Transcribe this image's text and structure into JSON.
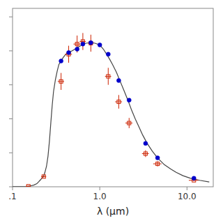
{
  "chart_data": {
    "type": "scatter",
    "xlabel": "λ (μm)",
    "log": "x",
    "grid": false,
    "tick_labels": "x",
    "xlim": [
      0.1,
      20.0
    ],
    "ylim": [
      0.0,
      1.05
    ],
    "xticks": [
      {
        "value": 0.1,
        "label": ".1"
      },
      {
        "value": 1.0,
        "label": "1.0"
      },
      {
        "value": 10.0,
        "label": "10.0"
      }
    ],
    "yticks": [
      0,
      0.2,
      0.4,
      0.6,
      0.8,
      1.0
    ],
    "series": [
      {
        "type": "line",
        "color": "#444444",
        "line_style": "solid",
        "x": [
          0.1,
          0.115,
          0.13,
          0.145,
          0.152,
          0.16,
          0.175,
          0.19,
          0.2,
          0.21,
          0.22,
          0.228,
          0.235,
          0.245,
          0.255,
          0.265,
          0.275,
          0.285,
          0.295,
          0.31,
          0.325,
          0.34,
          0.36,
          0.38,
          0.4,
          0.42,
          0.44,
          0.48,
          0.52,
          0.56,
          0.6,
          0.64,
          0.7,
          0.76,
          0.82,
          0.88,
          0.94,
          1.0,
          1.1,
          1.2,
          1.3,
          1.4,
          1.55,
          1.7,
          1.9,
          2.1,
          2.3,
          2.55,
          2.8,
          3.1,
          3.5,
          4.0,
          4.6,
          5.5,
          6.5,
          7.5,
          9.0,
          11.0,
          14.0,
          18.0
        ],
        "values": [
          0.0002,
          0.0003,
          0.0004,
          0.0008,
          0.003,
          0.005,
          0.01,
          0.018,
          0.03,
          0.042,
          0.055,
          0.065,
          0.085,
          0.12,
          0.18,
          0.27,
          0.38,
          0.48,
          0.56,
          0.63,
          0.68,
          0.72,
          0.74,
          0.76,
          0.775,
          0.785,
          0.79,
          0.8,
          0.81,
          0.82,
          0.83,
          0.84,
          0.845,
          0.848,
          0.848,
          0.845,
          0.84,
          0.835,
          0.81,
          0.78,
          0.75,
          0.72,
          0.675,
          0.625,
          0.565,
          0.51,
          0.455,
          0.4,
          0.355,
          0.305,
          0.255,
          0.21,
          0.17,
          0.13,
          0.105,
          0.085,
          0.065,
          0.05,
          0.038,
          0.028
        ]
      },
      {
        "type": "scatter",
        "color": "#cc2200",
        "marker": "square",
        "x": [
          0.152,
          0.228,
          0.36,
          0.44,
          0.55,
          0.64,
          0.79,
          1.25,
          1.65,
          2.17,
          3.35,
          4.6,
          12.0
        ],
        "values": [
          0.003,
          0.06,
          0.62,
          0.78,
          0.84,
          0.855,
          0.845,
          0.65,
          0.5,
          0.375,
          0.195,
          0.135,
          0.038
        ],
        "xerr": [
          0.01,
          0.015,
          0.03,
          0.04,
          0.05,
          0.05,
          0.06,
          0.1,
          0.15,
          0.2,
          0.3,
          0.5,
          1.5
        ],
        "yerr": [
          0.002,
          0.005,
          0.05,
          0.05,
          0.05,
          0.05,
          0.05,
          0.05,
          0.04,
          0.03,
          0.02,
          0.015,
          0.005
        ]
      },
      {
        "type": "scatter",
        "color": "#0000cc",
        "marker": "circle",
        "x": [
          0.36,
          0.44,
          0.55,
          0.64,
          0.79,
          1.0,
          1.25,
          1.65,
          2.17,
          3.35,
          4.6,
          12.0
        ],
        "values": [
          0.74,
          0.79,
          0.81,
          0.84,
          0.848,
          0.835,
          0.78,
          0.625,
          0.51,
          0.255,
          0.17,
          0.05
        ]
      }
    ]
  }
}
